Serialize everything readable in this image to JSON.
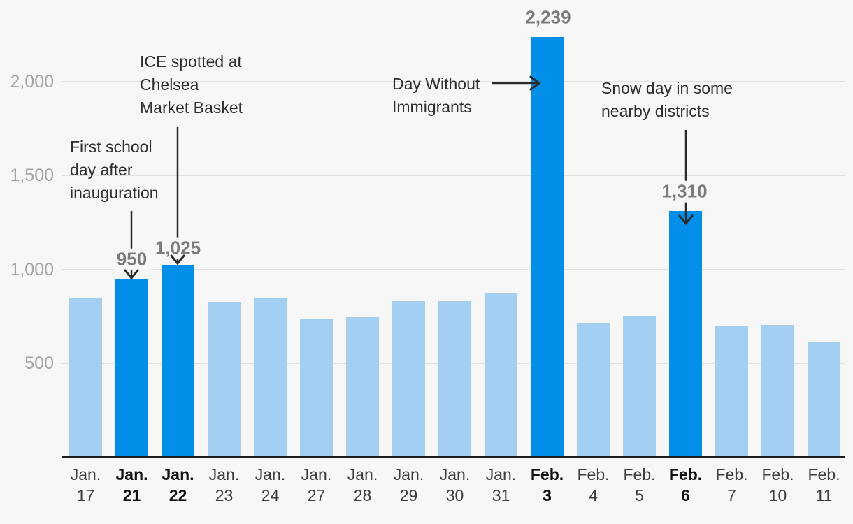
{
  "chart_data": {
    "type": "bar",
    "title": "",
    "xlabel": "",
    "ylabel": "",
    "ylim": [
      0,
      2436
    ],
    "grid": true,
    "y_ticks": [
      {
        "value": 500,
        "label": "500"
      },
      {
        "value": 1000,
        "label": "1,000"
      },
      {
        "value": 1500,
        "label": "1,500"
      },
      {
        "value": 2000,
        "label": "2,000"
      }
    ],
    "categories": [
      {
        "month": "Jan.",
        "day": "17",
        "highlighted": false
      },
      {
        "month": "Jan.",
        "day": "21",
        "highlighted": true
      },
      {
        "month": "Jan.",
        "day": "22",
        "highlighted": true
      },
      {
        "month": "Jan.",
        "day": "23",
        "highlighted": false
      },
      {
        "month": "Jan.",
        "day": "24",
        "highlighted": false
      },
      {
        "month": "Jan.",
        "day": "27",
        "highlighted": false
      },
      {
        "month": "Jan.",
        "day": "28",
        "highlighted": false
      },
      {
        "month": "Jan.",
        "day": "29",
        "highlighted": false
      },
      {
        "month": "Jan.",
        "day": "30",
        "highlighted": false
      },
      {
        "month": "Jan.",
        "day": "31",
        "highlighted": false
      },
      {
        "month": "Feb.",
        "day": "3",
        "highlighted": true
      },
      {
        "month": "Feb.",
        "day": "4",
        "highlighted": false
      },
      {
        "month": "Feb.",
        "day": "5",
        "highlighted": false
      },
      {
        "month": "Feb.",
        "day": "6",
        "highlighted": true
      },
      {
        "month": "Feb.",
        "day": "7",
        "highlighted": false
      },
      {
        "month": "Feb.",
        "day": "10",
        "highlighted": false
      },
      {
        "month": "Feb.",
        "day": "11",
        "highlighted": false
      }
    ],
    "values": [
      845,
      950,
      1025,
      825,
      845,
      735,
      745,
      830,
      830,
      870,
      2239,
      715,
      750,
      1310,
      700,
      705,
      610
    ],
    "data_labels": [
      null,
      "950",
      "1,025",
      null,
      null,
      null,
      null,
      null,
      null,
      null,
      "2,239",
      null,
      null,
      "1,310",
      null,
      null,
      null
    ],
    "annotations": [
      {
        "text": [
          "First school",
          "day after",
          "inauguration"
        ],
        "target": "Jan. 21"
      },
      {
        "text": [
          "ICE spotted at",
          "Chelsea",
          "Market Basket"
        ],
        "target": "Jan. 22"
      },
      {
        "text": [
          "Day Without",
          "Immigrants"
        ],
        "target": "Feb. 3"
      },
      {
        "text": [
          "Snow day in some",
          "nearby districts"
        ],
        "target": "Feb. 6"
      }
    ],
    "legend": null
  },
  "colors": {
    "background": "#f7f7f7",
    "bar_light": "#a3d0f2",
    "bar_highlight": "#028fe9",
    "gridline": "#e1e1e1",
    "axis_line": "#1c1c1c",
    "y_tick_label": "#a5a5a5",
    "x_tick_label": "#3d3d3d",
    "x_tick_label_highlight": "#111111",
    "data_label": "#7b7b7b",
    "annotation_text": "#2e2e2e",
    "arrow": "#2b2b2b"
  }
}
